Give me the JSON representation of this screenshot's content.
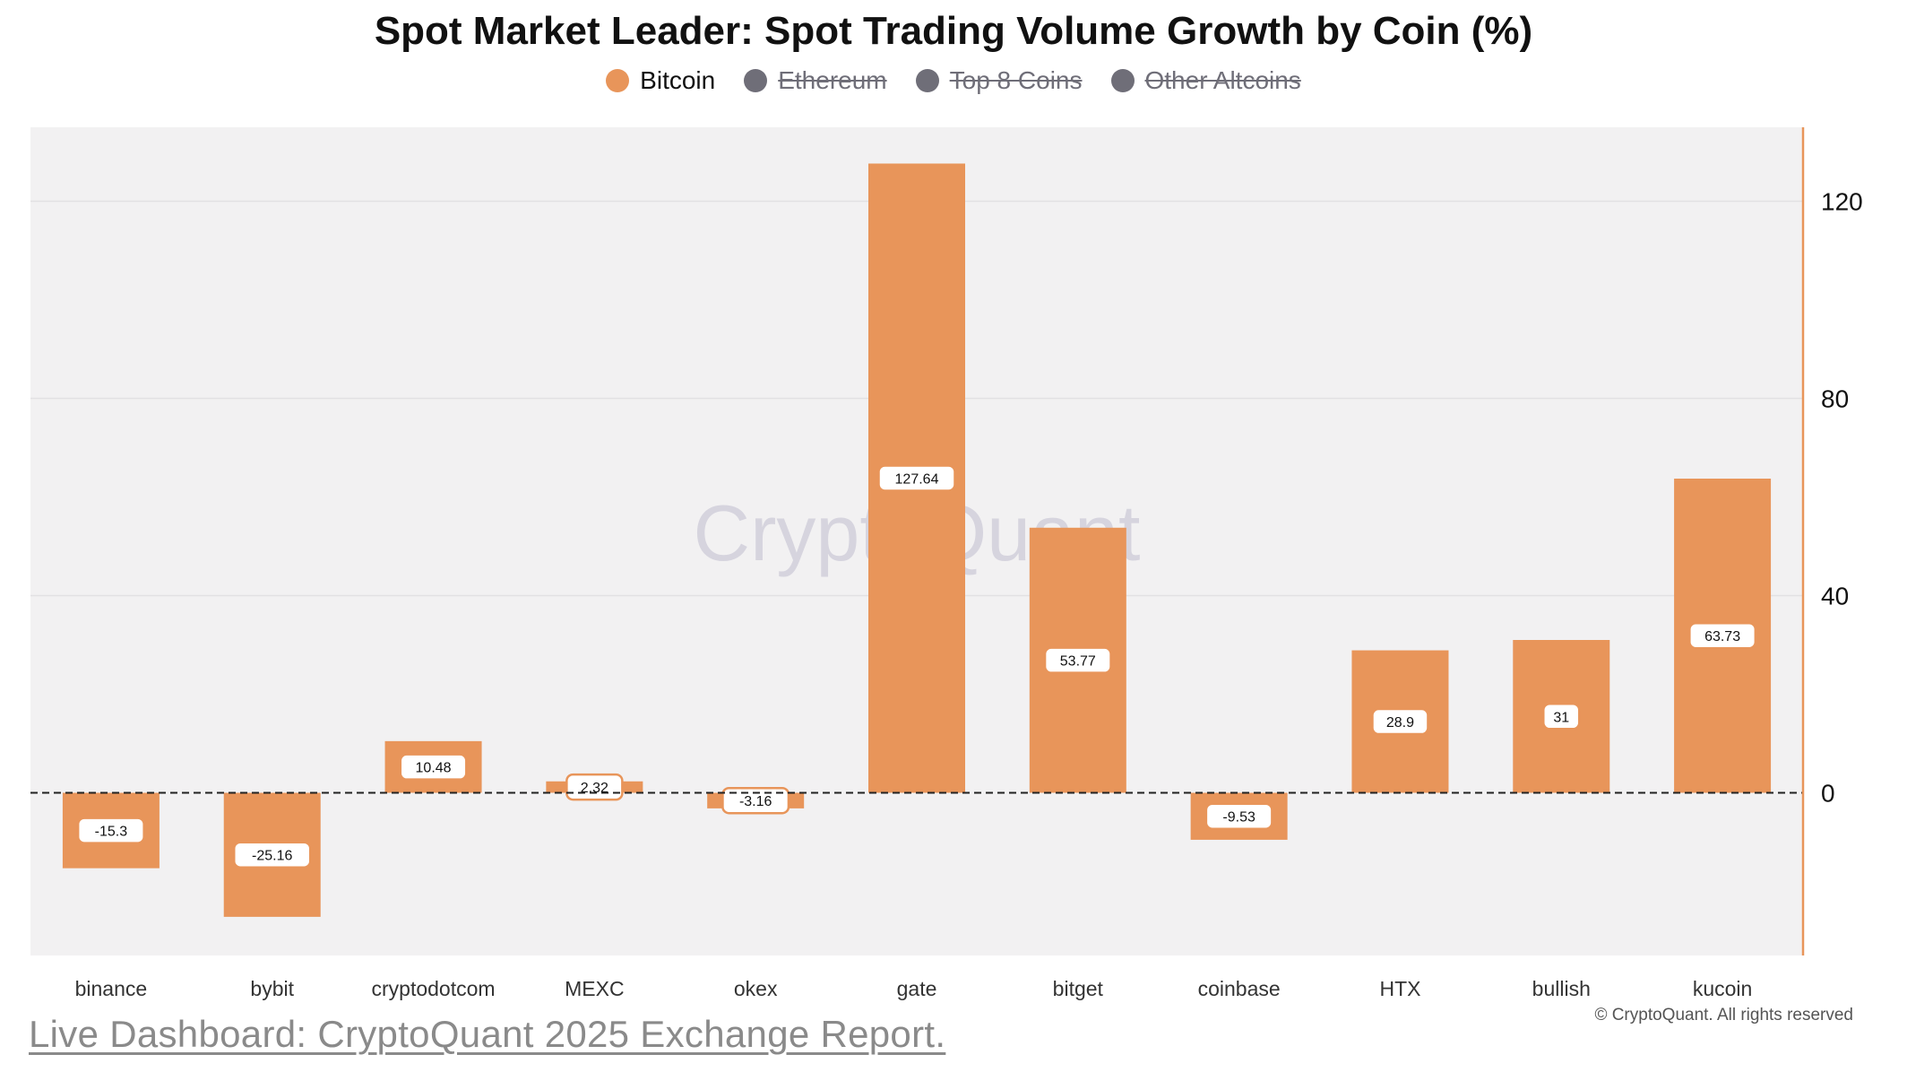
{
  "watermark": "CryptoQuant",
  "footer": {
    "copyright": "© CryptoQuant. All rights reserved",
    "link": "Live Dashboard: CryptoQuant 2025 Exchange Report."
  },
  "chart_data": {
    "type": "bar",
    "title": "Spot Market Leader: Spot Trading Volume Growth by Coin (%)",
    "categories": [
      "binance",
      "bybit",
      "cryptodotcom",
      "MEXC",
      "okex",
      "gate",
      "bitget",
      "coinbase",
      "HTX",
      "bullish",
      "kucoin"
    ],
    "series": [
      {
        "name": "Bitcoin",
        "values": [
          -15.3,
          -25.16,
          10.48,
          2.32,
          -3.16,
          127.64,
          53.77,
          -9.53,
          28.9,
          31,
          63.73
        ],
        "visible": true,
        "color": "#e8955a"
      },
      {
        "name": "Ethereum",
        "visible": false,
        "color": "#6f6e78"
      },
      {
        "name": "Top 8 Coins",
        "visible": false,
        "color": "#6f6e78"
      },
      {
        "name": "Other Altcoins",
        "visible": false,
        "color": "#6f6e78"
      }
    ],
    "y_axis": {
      "position": "right",
      "ticks": [
        0,
        40,
        80,
        120
      ],
      "ylim": [
        -33,
        135
      ]
    },
    "grid": true,
    "legend": "top-center",
    "zero_line": "dashed",
    "colors": {
      "bar": "#e8955a",
      "plot_bg": "#f2f1f2",
      "axis": "#e8955a"
    }
  }
}
